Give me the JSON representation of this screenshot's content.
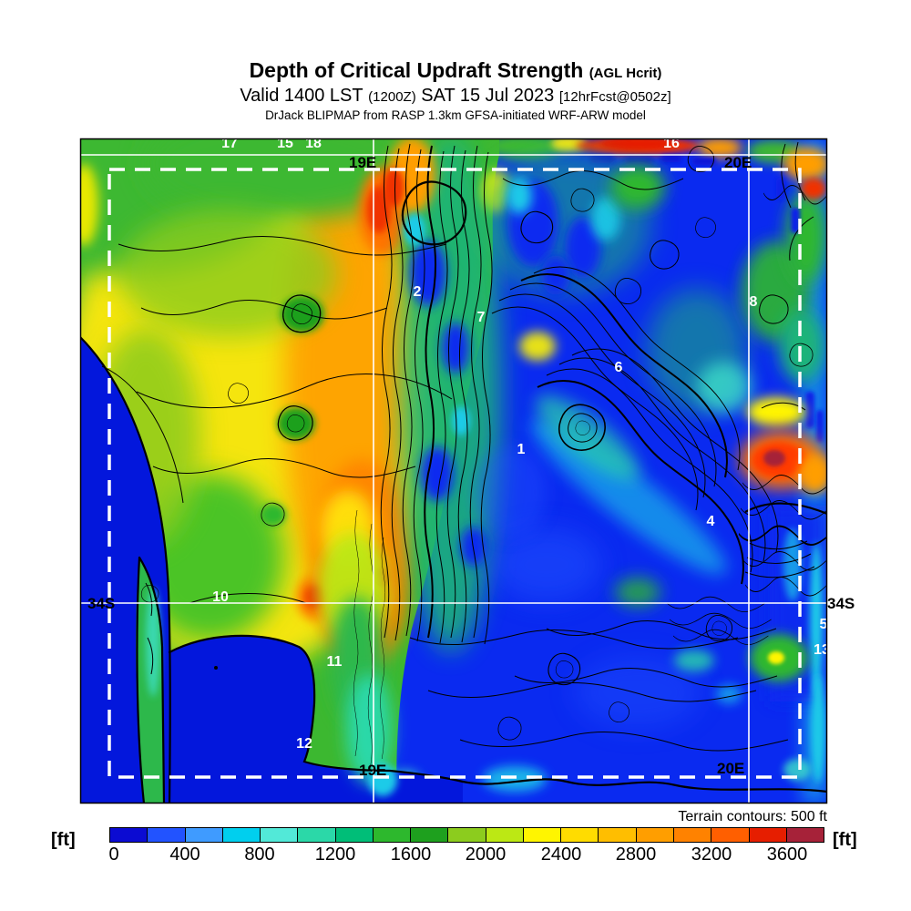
{
  "title": {
    "line1_main": "Depth of Critical Updraft Strength",
    "line1_suffix": "(AGL Hcrit)",
    "line2_prefix": "Valid 1400 LST",
    "line2_zulu": "(1200Z)",
    "line2_date": "SAT 15 Jul 2023",
    "line2_fcst": "[12hrFcst@0502z]",
    "line3": "DrJack BLIPMAP from RASP 1.3km GFSA-initiated WRF-ARW model"
  },
  "map": {
    "graticule_labels": {
      "top_19e": "19E",
      "top_20e": "20E",
      "right_34s": "34S",
      "left_34s": "34S",
      "bottom_19e": "19E",
      "bottom_20e": "20E"
    },
    "waypoints": [
      "1",
      "2",
      "4",
      "5",
      "6",
      "7",
      "8",
      "10",
      "11",
      "12",
      "13",
      "15",
      "16",
      "17",
      "18"
    ],
    "terrain_note": "Terrain contours: 500 ft"
  },
  "colorbar": {
    "unit_left": "[ft]",
    "unit_right": "[ft]",
    "ticks": [
      "0",
      "400",
      "800",
      "1200",
      "1600",
      "2000",
      "2400",
      "2800",
      "3200",
      "3600"
    ],
    "segment_colors": [
      "#0b0bd2",
      "#2253ff",
      "#3f9bff",
      "#00cfee",
      "#52e9d8",
      "#2bd8a8",
      "#00be78",
      "#2db82d",
      "#1ea01e",
      "#8ccc1e",
      "#bce814",
      "#fff500",
      "#ffdc00",
      "#ffbe00",
      "#ff9e00",
      "#ff8200",
      "#ff5f00",
      "#e61e00",
      "#a62239"
    ]
  },
  "chart_data": {
    "type": "heatmap",
    "title": "Depth of Critical Updraft Strength (AGL Hcrit)",
    "valid_time": "1400 LST (1200Z) SAT 15 Jul 2023",
    "forecast_offset": "12hrFcst@0502z",
    "source": "DrJack BLIPMAP from RASP 1.3km GFSA-initiated WRF-ARW model",
    "units": "ft",
    "colorbar_ticks": [
      0,
      400,
      800,
      1200,
      1600,
      2000,
      2400,
      2800,
      3200,
      3600
    ],
    "colorbar_range": [
      0,
      3800
    ],
    "bin_size_ft": 200,
    "terrain_contour_interval_ft": 500,
    "legend_note": "Terrain contours: 500 ft",
    "graticule": {
      "meridian_labels": [
        "19E",
        "20E"
      ],
      "parallel_labels": [
        "34S"
      ]
    },
    "waypoint_labels": [
      "1",
      "2",
      "4",
      "5",
      "6",
      "7",
      "8",
      "10",
      "11",
      "12",
      "13",
      "15",
      "16",
      "17",
      "18"
    ]
  }
}
